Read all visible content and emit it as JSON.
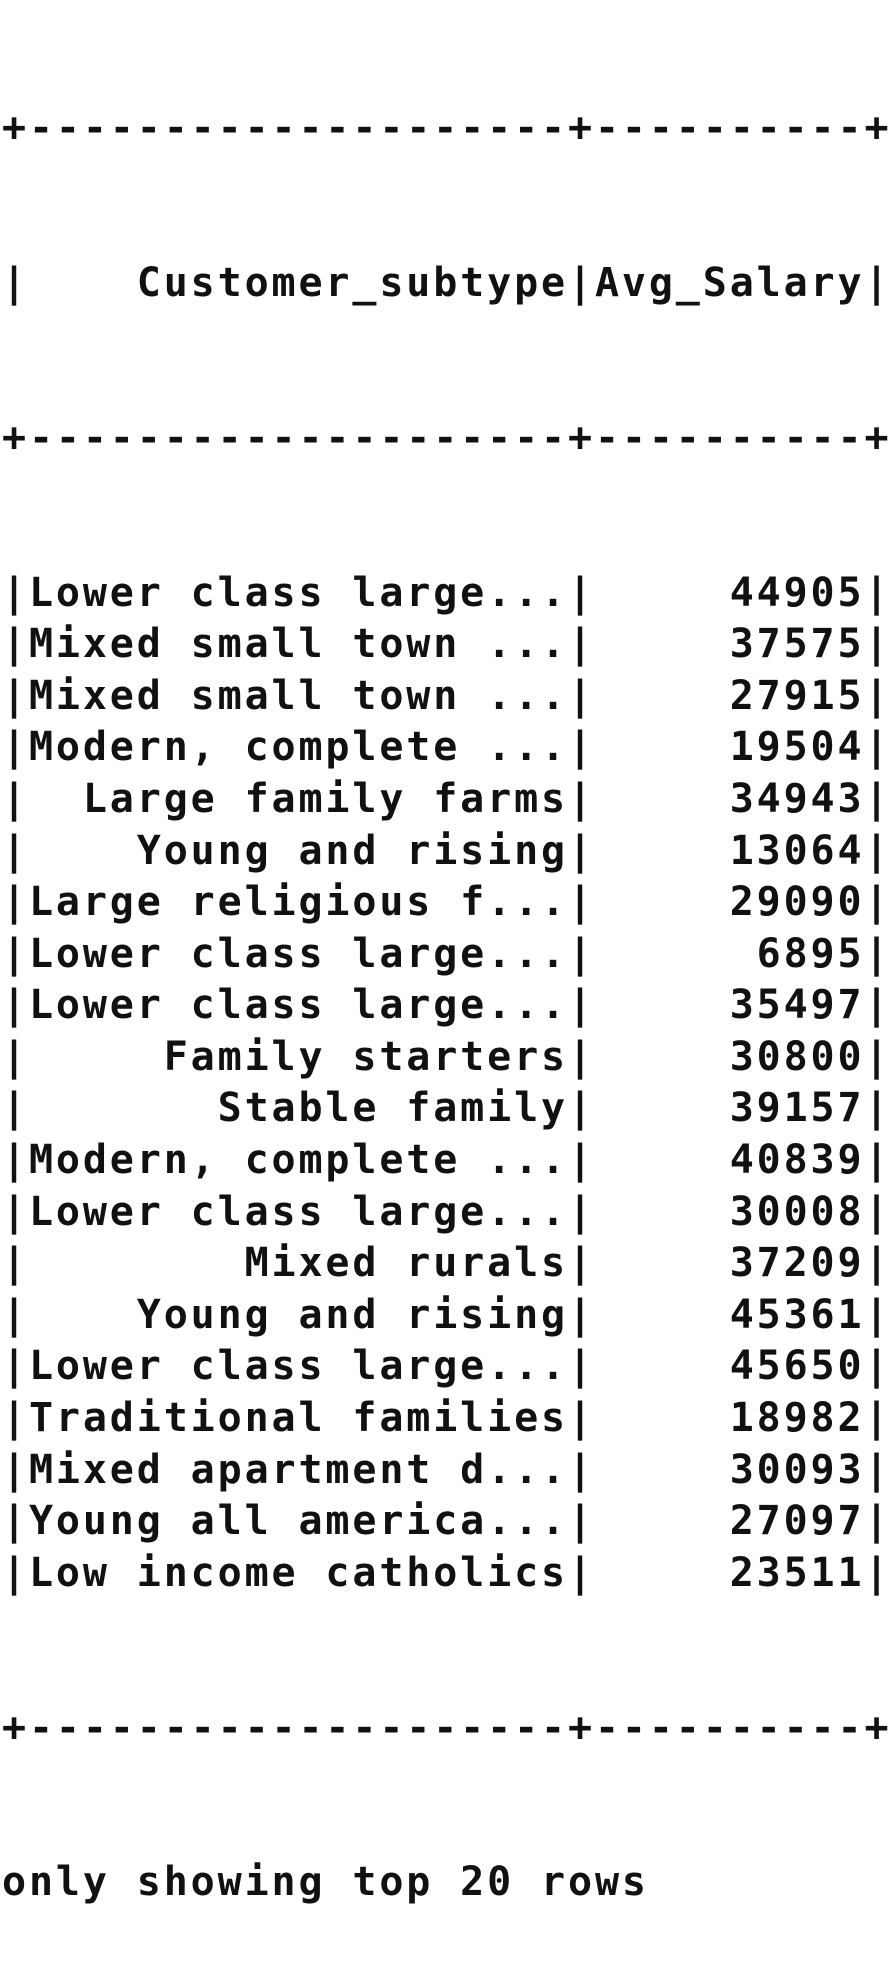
{
  "table": {
    "headers": [
      "Customer_subtype",
      "Avg_Salary"
    ],
    "rows": [
      [
        "Lower class large...",
        "44905"
      ],
      [
        "Mixed small town ...",
        "37575"
      ],
      [
        "Mixed small town ...",
        "27915"
      ],
      [
        "Modern, complete ...",
        "19504"
      ],
      [
        "Large family farms",
        "34943"
      ],
      [
        "Young and rising",
        "13064"
      ],
      [
        "Large religious f...",
        "29090"
      ],
      [
        "Lower class large...",
        "6895"
      ],
      [
        "Lower class large...",
        "35497"
      ],
      [
        "Family starters",
        "30800"
      ],
      [
        "Stable family",
        "39157"
      ],
      [
        "Modern, complete ...",
        "40839"
      ],
      [
        "Lower class large...",
        "30008"
      ],
      [
        "Mixed rurals",
        "37209"
      ],
      [
        "Young and rising",
        "45361"
      ],
      [
        "Lower class large...",
        "45650"
      ],
      [
        "Traditional families",
        "18982"
      ],
      [
        "Mixed apartment d...",
        "30093"
      ],
      [
        "Young all america...",
        "27097"
      ],
      [
        "Low income catholics",
        "23511"
      ]
    ]
  },
  "footer": "only showing top 20 rows",
  "colors": {
    "text": "#111111",
    "background": "#ffffff"
  }
}
